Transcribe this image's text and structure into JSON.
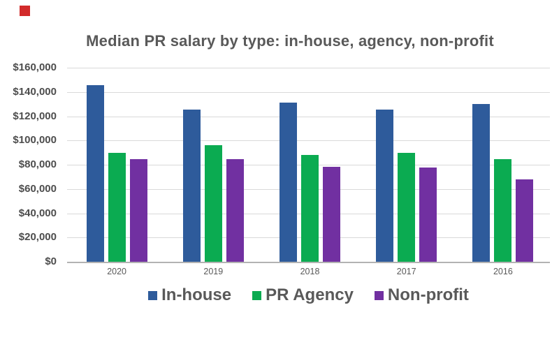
{
  "decor": {
    "red_square_color": "#d22b2b"
  },
  "chart_data": {
    "type": "bar",
    "title": "Median PR salary by type: in-house, agency, non-profit",
    "categories": [
      "2020",
      "2019",
      "2018",
      "2017",
      "2016"
    ],
    "series": [
      {
        "name": "In-house",
        "color": "#2E5B9B",
        "values": [
          145500,
          125500,
          131500,
          125500,
          130000
        ]
      },
      {
        "name": "PR Agency",
        "color": "#0BAB51",
        "values": [
          90000,
          96000,
          88000,
          90000,
          84500
        ]
      },
      {
        "name": "Non-profit",
        "color": "#7130A1",
        "values": [
          84500,
          84500,
          78000,
          77500,
          68000
        ]
      }
    ],
    "y_axis": {
      "min": 0,
      "max": 160000,
      "tick_step": 20000,
      "tick_labels": [
        "$0",
        "$20,000",
        "$40,000",
        "$60,000",
        "$80,000",
        "$100,000",
        "$120,000",
        "$140,000",
        "$160,000"
      ]
    },
    "xlabel": "",
    "ylabel": "",
    "grid": true,
    "legend_position": "bottom"
  }
}
